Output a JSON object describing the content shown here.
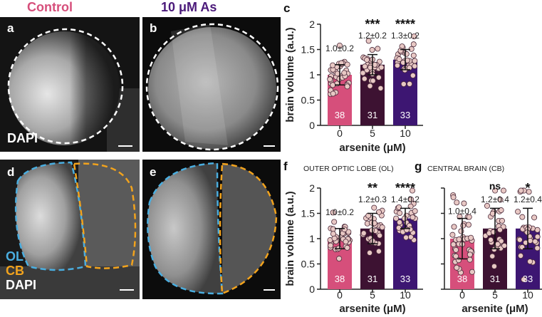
{
  "colors": {
    "control": "#d64f7b",
    "arsenite5": "#3d1232",
    "arsenite10": "#3d1672",
    "dot_fill": "#e8c8c4",
    "ol": "#4aaee0",
    "cb": "#f2a31d"
  },
  "headers": {
    "control": "Control",
    "treated": "10 μM As"
  },
  "panels": {
    "a": "a",
    "b": "b",
    "c": "c",
    "d": "d",
    "e": "e",
    "f": "f",
    "g": "g"
  },
  "stains": {
    "dapi_a": "DAPI",
    "ol": "OL",
    "cb": "CB",
    "dapi_d": "DAPI"
  },
  "chart_data": [
    {
      "id": "c",
      "type": "bar",
      "title": "",
      "xlabel": "arsenite (μM)",
      "ylabel": "brain volume (a.u.)",
      "ylim": [
        0,
        2
      ],
      "yticks": [
        "0",
        "0.5",
        "1",
        "1.5",
        "2"
      ],
      "categories": [
        "0",
        "5",
        "10"
      ],
      "values": [
        1.0,
        1.2,
        1.3
      ],
      "sd": [
        0.2,
        0.2,
        0.2
      ],
      "n": [
        "38",
        "31",
        "33"
      ],
      "value_labels": [
        "1.0±0.2",
        "1.2±0.2",
        "1.3±0.2"
      ],
      "significance": [
        "",
        "***",
        "****"
      ]
    },
    {
      "id": "f",
      "type": "bar",
      "title": "OUTER OPTIC LOBE (OL)",
      "xlabel": "arsenite (μM)",
      "ylabel": "brain volume (a.u.)",
      "ylim": [
        0,
        2
      ],
      "yticks": [
        "0",
        "0.5",
        "1",
        "1.5",
        "2"
      ],
      "categories": [
        "0",
        "5",
        "10"
      ],
      "values": [
        1.0,
        1.2,
        1.4
      ],
      "sd": [
        0.2,
        0.3,
        0.2
      ],
      "n": [
        "38",
        "31",
        "33"
      ],
      "value_labels": [
        "1.0±0.2",
        "1.2±0.3",
        "1.4±0.2"
      ],
      "significance": [
        "",
        "**",
        "****"
      ]
    },
    {
      "id": "g",
      "type": "bar",
      "title": "CENTRAL BRAIN (CB)",
      "xlabel": "arsenite (μM)",
      "ylabel": "",
      "ylim": [
        0,
        2
      ],
      "yticks": [
        "",
        "",
        "",
        "",
        ""
      ],
      "categories": [
        "0",
        "5",
        "10"
      ],
      "values": [
        1.0,
        1.2,
        1.2
      ],
      "sd": [
        0.4,
        0.4,
        0.4
      ],
      "n": [
        "38",
        "31",
        "33"
      ],
      "value_labels": [
        "1.0±0.4",
        "1.2±0.4",
        "1.2±0.4"
      ],
      "significance": [
        "",
        "ns",
        "*"
      ]
    }
  ]
}
